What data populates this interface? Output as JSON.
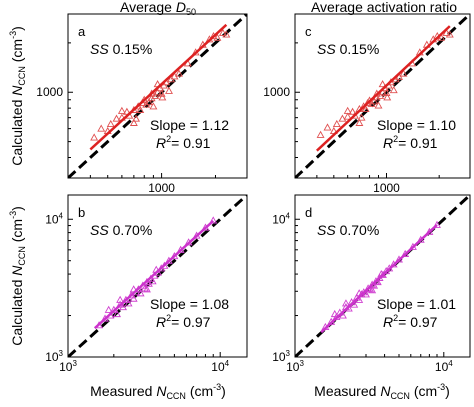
{
  "figure": {
    "col_titles": [
      {
        "text": "Average ",
        "sub": "50",
        "sym": "D"
      },
      {
        "text": "Average activation ratio"
      }
    ],
    "ylabel": {
      "pre": "Calculated ",
      "sym": "N",
      "sub": "CCN",
      "unit": " (cm",
      "sup": "-3",
      "close": ")"
    },
    "xlabel": {
      "pre": "Measured ",
      "sym": "N",
      "sub": "CCN",
      "unit": " (cm",
      "sup": "-3",
      "close": ")"
    }
  },
  "chart_data": [
    {
      "panel": "a",
      "type": "scatter",
      "ss_label": "SS",
      "ss_value": "0.15%",
      "slope_text": "Slope = 1.12",
      "r2_text": "R",
      "r2_value": "= 0.91",
      "xlim": [
        300,
        3000
      ],
      "ylim": [
        300,
        3000
      ],
      "log": true,
      "xticks": [
        {
          "v": 1000,
          "label": "1000"
        }
      ],
      "yticks": [
        {
          "v": 1000,
          "label": "1000"
        }
      ],
      "marker_color": "#e05050",
      "fit_color": "#dd2222",
      "fit": {
        "slope": 1.12,
        "x": [
          400,
          2300
        ]
      },
      "points": [
        [
          420,
          530
        ],
        [
          460,
          600
        ],
        [
          520,
          640
        ],
        [
          560,
          690
        ],
        [
          600,
          700
        ],
        [
          640,
          760
        ],
        [
          660,
          720
        ],
        [
          700,
          780
        ],
        [
          720,
          690
        ],
        [
          740,
          820
        ],
        [
          760,
          780
        ],
        [
          780,
          860
        ],
        [
          800,
          900
        ],
        [
          820,
          840
        ],
        [
          850,
          870
        ],
        [
          880,
          920
        ],
        [
          900,
          820
        ],
        [
          920,
          950
        ],
        [
          950,
          1000
        ],
        [
          980,
          1060
        ],
        [
          1000,
          980
        ],
        [
          1030,
          1100
        ],
        [
          1060,
          1150
        ],
        [
          1100,
          1020
        ],
        [
          1130,
          1200
        ],
        [
          1180,
          1250
        ],
        [
          1250,
          1300
        ],
        [
          1400,
          1500
        ],
        [
          1550,
          1750
        ],
        [
          1700,
          1950
        ],
        [
          1850,
          2100
        ],
        [
          1950,
          2200
        ],
        [
          2050,
          2150
        ],
        [
          2200,
          2300
        ],
        [
          2300,
          2250
        ],
        [
          950,
          1120
        ],
        [
          1010,
          930
        ],
        [
          880,
          980
        ],
        [
          700,
          650
        ],
        [
          600,
          770
        ],
        [
          500,
          580
        ]
      ]
    },
    {
      "panel": "b",
      "type": "scatter",
      "ss_label": "SS",
      "ss_value": "0.70%",
      "slope_text": "Slope = 1.08",
      "r2_text": "R",
      "r2_value": "= 0.97",
      "xlim": [
        1000,
        15000
      ],
      "ylim": [
        1000,
        15000
      ],
      "log": true,
      "xticks": [
        {
          "v": 1000,
          "label": "10",
          "sup": "3"
        },
        {
          "v": 10000,
          "label": "10",
          "sup": "4"
        }
      ],
      "yticks": [
        {
          "v": 1000,
          "label": "10",
          "sup": "3"
        },
        {
          "v": 10000,
          "label": "10",
          "sup": "4"
        }
      ],
      "marker_color": "#d040d0",
      "fit_color": "#cc33cc",
      "fit": {
        "slope": 1.08,
        "x": [
          1500,
          9000
        ]
      },
      "points": [
        [
          1600,
          1700
        ],
        [
          1750,
          1900
        ],
        [
          1900,
          2000
        ],
        [
          2000,
          2200
        ],
        [
          2100,
          2050
        ],
        [
          2200,
          2400
        ],
        [
          2300,
          2300
        ],
        [
          2400,
          2600
        ],
        [
          2500,
          2450
        ],
        [
          2600,
          2800
        ],
        [
          2700,
          2650
        ],
        [
          2800,
          2950
        ],
        [
          2900,
          3100
        ],
        [
          3000,
          2900
        ],
        [
          3100,
          3300
        ],
        [
          3200,
          3150
        ],
        [
          3300,
          3500
        ],
        [
          3400,
          3400
        ],
        [
          3500,
          3700
        ],
        [
          3600,
          3550
        ],
        [
          3700,
          3900
        ],
        [
          3900,
          4100
        ],
        [
          4100,
          4400
        ],
        [
          4300,
          4600
        ],
        [
          4600,
          5000
        ],
        [
          5000,
          5400
        ],
        [
          5500,
          6000
        ],
        [
          6200,
          6800
        ],
        [
          7000,
          7600
        ],
        [
          8000,
          8700
        ],
        [
          9000,
          9800
        ],
        [
          2200,
          2600
        ],
        [
          2700,
          3100
        ],
        [
          3300,
          3100
        ],
        [
          1850,
          2200
        ],
        [
          3800,
          4300
        ]
      ]
    },
    {
      "panel": "c",
      "type": "scatter",
      "ss_label": "SS",
      "ss_value": "0.15%",
      "slope_text": "Slope = 1.10",
      "r2_text": "R",
      "r2_value": "= 0.91",
      "xlim": [
        300,
        3000
      ],
      "ylim": [
        300,
        3000
      ],
      "log": true,
      "xticks": [
        {
          "v": 1000,
          "label": "1000"
        }
      ],
      "yticks": [
        {
          "v": 1000,
          "label": "1000"
        }
      ],
      "marker_color": "#e05050",
      "fit_color": "#dd2222",
      "fit": {
        "slope": 1.1,
        "x": [
          400,
          2300
        ]
      },
      "points": [
        [
          420,
          550
        ],
        [
          460,
          610
        ],
        [
          520,
          640
        ],
        [
          560,
          690
        ],
        [
          600,
          710
        ],
        [
          640,
          760
        ],
        [
          660,
          720
        ],
        [
          700,
          790
        ],
        [
          720,
          700
        ],
        [
          740,
          820
        ],
        [
          760,
          790
        ],
        [
          780,
          860
        ],
        [
          800,
          890
        ],
        [
          820,
          850
        ],
        [
          850,
          880
        ],
        [
          880,
          930
        ],
        [
          900,
          830
        ],
        [
          920,
          950
        ],
        [
          950,
          1000
        ],
        [
          980,
          1060
        ],
        [
          1000,
          990
        ],
        [
          1030,
          1100
        ],
        [
          1060,
          1150
        ],
        [
          1100,
          1030
        ],
        [
          1130,
          1200
        ],
        [
          1180,
          1240
        ],
        [
          1250,
          1300
        ],
        [
          1400,
          1500
        ],
        [
          1550,
          1750
        ],
        [
          1700,
          1950
        ],
        [
          1850,
          2100
        ],
        [
          1950,
          2200
        ],
        [
          2050,
          2150
        ],
        [
          2200,
          2300
        ],
        [
          2300,
          2250
        ],
        [
          950,
          1120
        ],
        [
          1010,
          930
        ],
        [
          880,
          980
        ],
        [
          700,
          650
        ],
        [
          600,
          770
        ],
        [
          500,
          580
        ]
      ]
    },
    {
      "panel": "d",
      "type": "scatter",
      "ss_label": "SS",
      "ss_value": "0.70%",
      "slope_text": "Slope = 1.01",
      "r2_text": "R",
      "r2_value": "= 0.97",
      "xlim": [
        1000,
        15000
      ],
      "ylim": [
        1000,
        15000
      ],
      "log": true,
      "xticks": [
        {
          "v": 1000,
          "label": "10",
          "sup": "3"
        },
        {
          "v": 10000,
          "label": "10",
          "sup": "4"
        }
      ],
      "yticks": [
        {
          "v": 1000,
          "label": "10",
          "sup": "3"
        },
        {
          "v": 10000,
          "label": "10",
          "sup": "4"
        }
      ],
      "marker_color": "#d040d0",
      "fit_color": "#cc33cc",
      "fit": {
        "slope": 1.01,
        "x": [
          1500,
          9000
        ]
      },
      "points": [
        [
          1600,
          1650
        ],
        [
          1750,
          1800
        ],
        [
          1900,
          1950
        ],
        [
          2000,
          2100
        ],
        [
          2100,
          2000
        ],
        [
          2200,
          2300
        ],
        [
          2300,
          2250
        ],
        [
          2400,
          2500
        ],
        [
          2500,
          2400
        ],
        [
          2600,
          2700
        ],
        [
          2700,
          2600
        ],
        [
          2800,
          2850
        ],
        [
          2900,
          2950
        ],
        [
          3000,
          2850
        ],
        [
          3100,
          3150
        ],
        [
          3200,
          3100
        ],
        [
          3300,
          3350
        ],
        [
          3400,
          3300
        ],
        [
          3500,
          3550
        ],
        [
          3600,
          3500
        ],
        [
          3700,
          3750
        ],
        [
          3900,
          3950
        ],
        [
          4100,
          4200
        ],
        [
          4300,
          4400
        ],
        [
          4600,
          4700
        ],
        [
          5000,
          5100
        ],
        [
          5500,
          5600
        ],
        [
          6200,
          6300
        ],
        [
          7000,
          7100
        ],
        [
          8000,
          8100
        ],
        [
          9000,
          9100
        ],
        [
          2200,
          2450
        ],
        [
          2700,
          2900
        ],
        [
          3300,
          3050
        ],
        [
          1850,
          2050
        ],
        [
          3800,
          4000
        ]
      ]
    }
  ]
}
